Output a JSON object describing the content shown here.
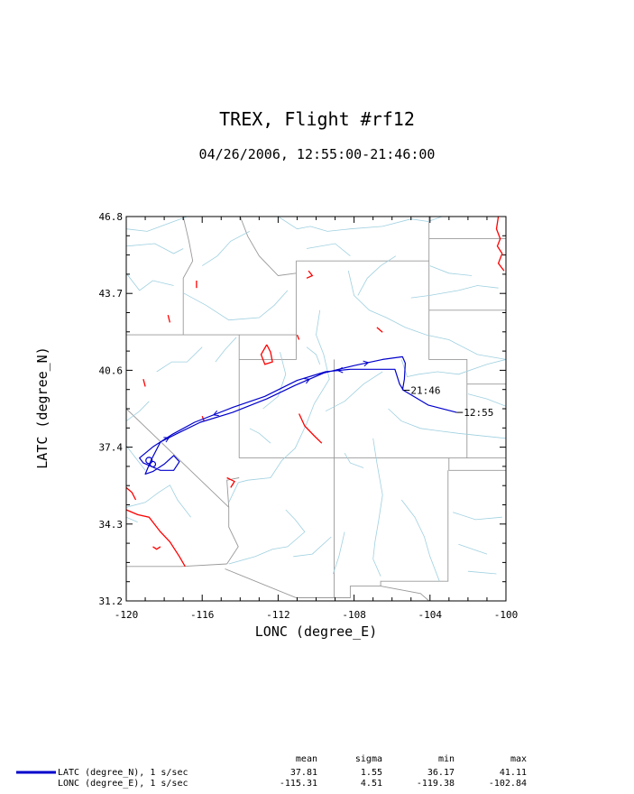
{
  "chart_data": {
    "type": "line",
    "title": "TREX, Flight #rf12",
    "subtitle": "04/26/2006, 12:55:00-21:46:00",
    "xlabel": "LONC (degree_E)",
    "ylabel": "LATC (degree_N)",
    "xlim": [
      -120,
      -100
    ],
    "ylim": [
      31.2,
      46.8
    ],
    "xticks": [
      "-120",
      "-116",
      "-112",
      "-108",
      "-104",
      "-100"
    ],
    "yticks": [
      "31.2",
      "34.3",
      "37.4",
      "40.6",
      "43.7",
      "46.8"
    ],
    "grid": false,
    "annotations": [
      {
        "text": "21:46",
        "x": -105.4,
        "y": 39.75
      },
      {
        "text": "12:55",
        "x": -102.6,
        "y": 38.85
      }
    ],
    "series": [
      {
        "name": "LATC (degree_N), 1 s/sec",
        "color": "#0000cc",
        "x": [
          -102.6,
          -104.1,
          -105.4,
          -105.6,
          -105.85,
          -106.9,
          -108.2,
          -109.5,
          -111.0,
          -112.7,
          -114.4,
          -116.4,
          -117.6,
          -118.6,
          -119.3,
          -119.1,
          -118.8,
          -118.2,
          -117.5,
          -117.2,
          -117.5,
          -118.0,
          -118.6,
          -119.0,
          -118.7,
          -118.2,
          -117.3,
          -116.1,
          -114.4,
          -112.6,
          -111.1,
          -109.6,
          -108.0,
          -106.5,
          -105.45,
          -105.3,
          -105.35,
          -105.45
        ],
        "y": [
          38.85,
          39.15,
          39.75,
          40.0,
          40.6,
          40.6,
          40.6,
          40.5,
          40.15,
          39.5,
          39.05,
          38.45,
          37.95,
          37.45,
          37.0,
          36.8,
          36.7,
          36.5,
          36.5,
          36.85,
          37.1,
          36.75,
          36.45,
          36.35,
          36.9,
          37.65,
          38.0,
          38.45,
          38.85,
          39.4,
          39.95,
          40.45,
          40.75,
          41.0,
          41.11,
          40.85,
          40.2,
          39.75
        ]
      }
    ],
    "stats": {
      "headers": [
        "mean",
        "sigma",
        "min",
        "max"
      ],
      "rows": [
        {
          "label": "LATC (degree_N), 1 s/sec",
          "mean": "37.81",
          "sigma": "1.55",
          "min": "36.17",
          "max": "41.11"
        },
        {
          "label": "LONC (degree_E), 1 s/sec",
          "mean": "-115.31",
          "sigma": "4.51",
          "min": "-119.38",
          "max": "-102.84"
        }
      ]
    },
    "map_colors": {
      "borders": "#999999",
      "rivers": "#9fd0e0",
      "lakes": "#ff0000"
    }
  }
}
